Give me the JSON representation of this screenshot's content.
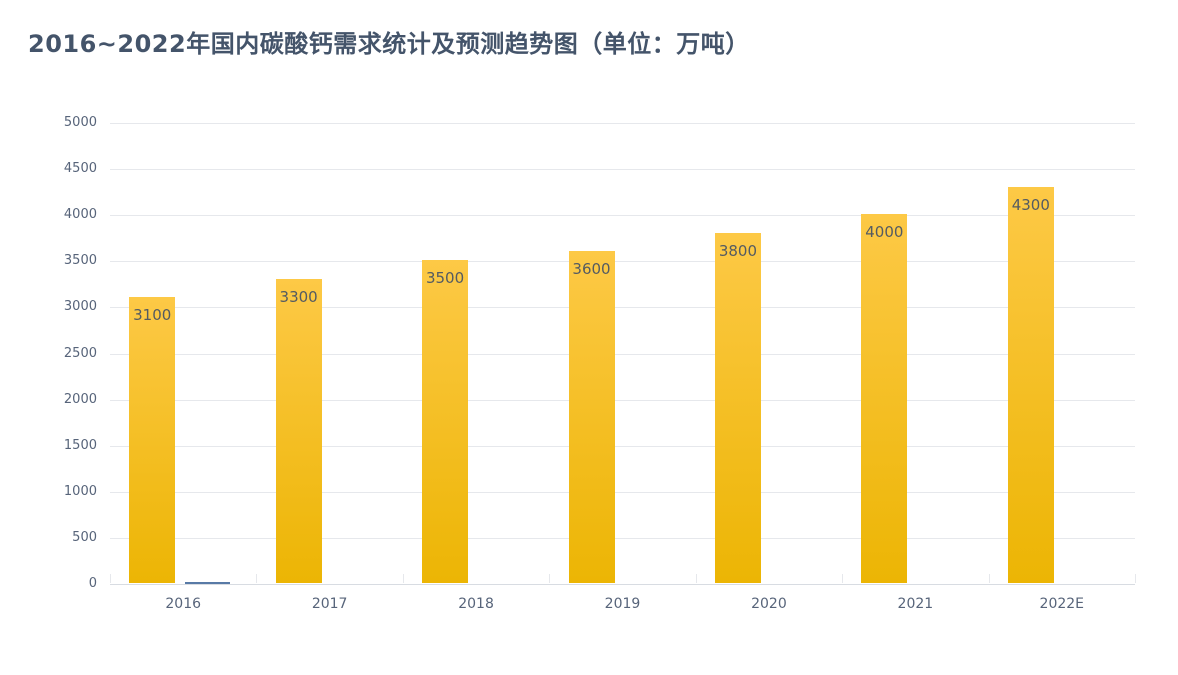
{
  "title": "2016~2022年国内碳酸钙需求统计及预测趋势图（单位：万吨）",
  "colors": {
    "title": "#44546A",
    "axis_label": "#57647A",
    "gridline": "#E6E8EC",
    "axis_line": "#D8DCE2",
    "bar_gradient_top": "#FDC946",
    "bar_gradient_bottom": "#ECB504",
    "bar_value_label": "#545B62",
    "secondary_series_blue": "#587AA6",
    "background": "#FFFFFF"
  },
  "chart_data": {
    "type": "bar",
    "title": "2016~2022年国内碳酸钙需求统计及预测趋势图（单位：万吨）",
    "categories": [
      "2016",
      "2017",
      "2018",
      "2019",
      "2020",
      "2021",
      "2022E"
    ],
    "values": [
      3100,
      3300,
      3500,
      3600,
      3800,
      4000,
      4300
    ],
    "data_labels": [
      "3100",
      "3300",
      "3500",
      "3600",
      "3800",
      "4000",
      "4300"
    ],
    "xlabel": "",
    "ylabel": "",
    "unit": "万吨",
    "ylim": [
      0,
      5000
    ],
    "yticks": [
      0,
      500,
      1000,
      1500,
      2000,
      2500,
      3000,
      3500,
      4000,
      4500,
      5000
    ],
    "grid": "horizontal gridlines on, x tick marks at category boundaries",
    "legend": "none",
    "bar_style": "vertical gold gradient bars, value labels inside top of bar",
    "secondary_series": {
      "note": "thin blue segment drawn at the zero baseline beside the 2016 bar (value ≈ 0)",
      "points": [
        {
          "category": "2016",
          "value": 0
        }
      ]
    }
  }
}
